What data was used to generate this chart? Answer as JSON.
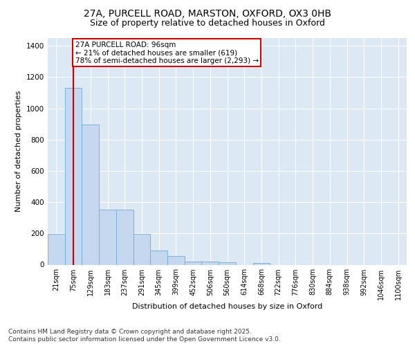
{
  "title_line1": "27A, PURCELL ROAD, MARSTON, OXFORD, OX3 0HB",
  "title_line2": "Size of property relative to detached houses in Oxford",
  "xlabel": "Distribution of detached houses by size in Oxford",
  "ylabel": "Number of detached properties",
  "categories": [
    "21sqm",
    "75sqm",
    "129sqm",
    "183sqm",
    "237sqm",
    "291sqm",
    "345sqm",
    "399sqm",
    "452sqm",
    "506sqm",
    "560sqm",
    "614sqm",
    "668sqm",
    "722sqm",
    "776sqm",
    "830sqm",
    "884sqm",
    "938sqm",
    "992sqm",
    "1046sqm",
    "1100sqm"
  ],
  "values": [
    195,
    1130,
    895,
    350,
    350,
    195,
    90,
    55,
    22,
    22,
    15,
    0,
    12,
    0,
    0,
    0,
    0,
    0,
    0,
    0,
    0
  ],
  "bar_color": "#c5d8f0",
  "bar_edge_color": "#6faad4",
  "marker_color": "#cc0000",
  "annotation_text": "27A PURCELL ROAD: 96sqm\n← 21% of detached houses are smaller (619)\n78% of semi-detached houses are larger (2,293) →",
  "annotation_box_facecolor": "#ffffff",
  "annotation_box_edgecolor": "#cc0000",
  "ylim": [
    0,
    1450
  ],
  "yticks": [
    0,
    200,
    400,
    600,
    800,
    1000,
    1200,
    1400
  ],
  "fig_bg": "#ffffff",
  "plot_bg": "#dde8f5",
  "footer_line1": "Contains HM Land Registry data © Crown copyright and database right 2025.",
  "footer_line2": "Contains public sector information licensed under the Open Government Licence v3.0.",
  "grid_color": "#ffffff",
  "title1_fontsize": 10,
  "title2_fontsize": 9,
  "axis_label_fontsize": 8,
  "tick_fontsize": 7,
  "footer_fontsize": 6.5,
  "annot_fontsize": 7.5
}
